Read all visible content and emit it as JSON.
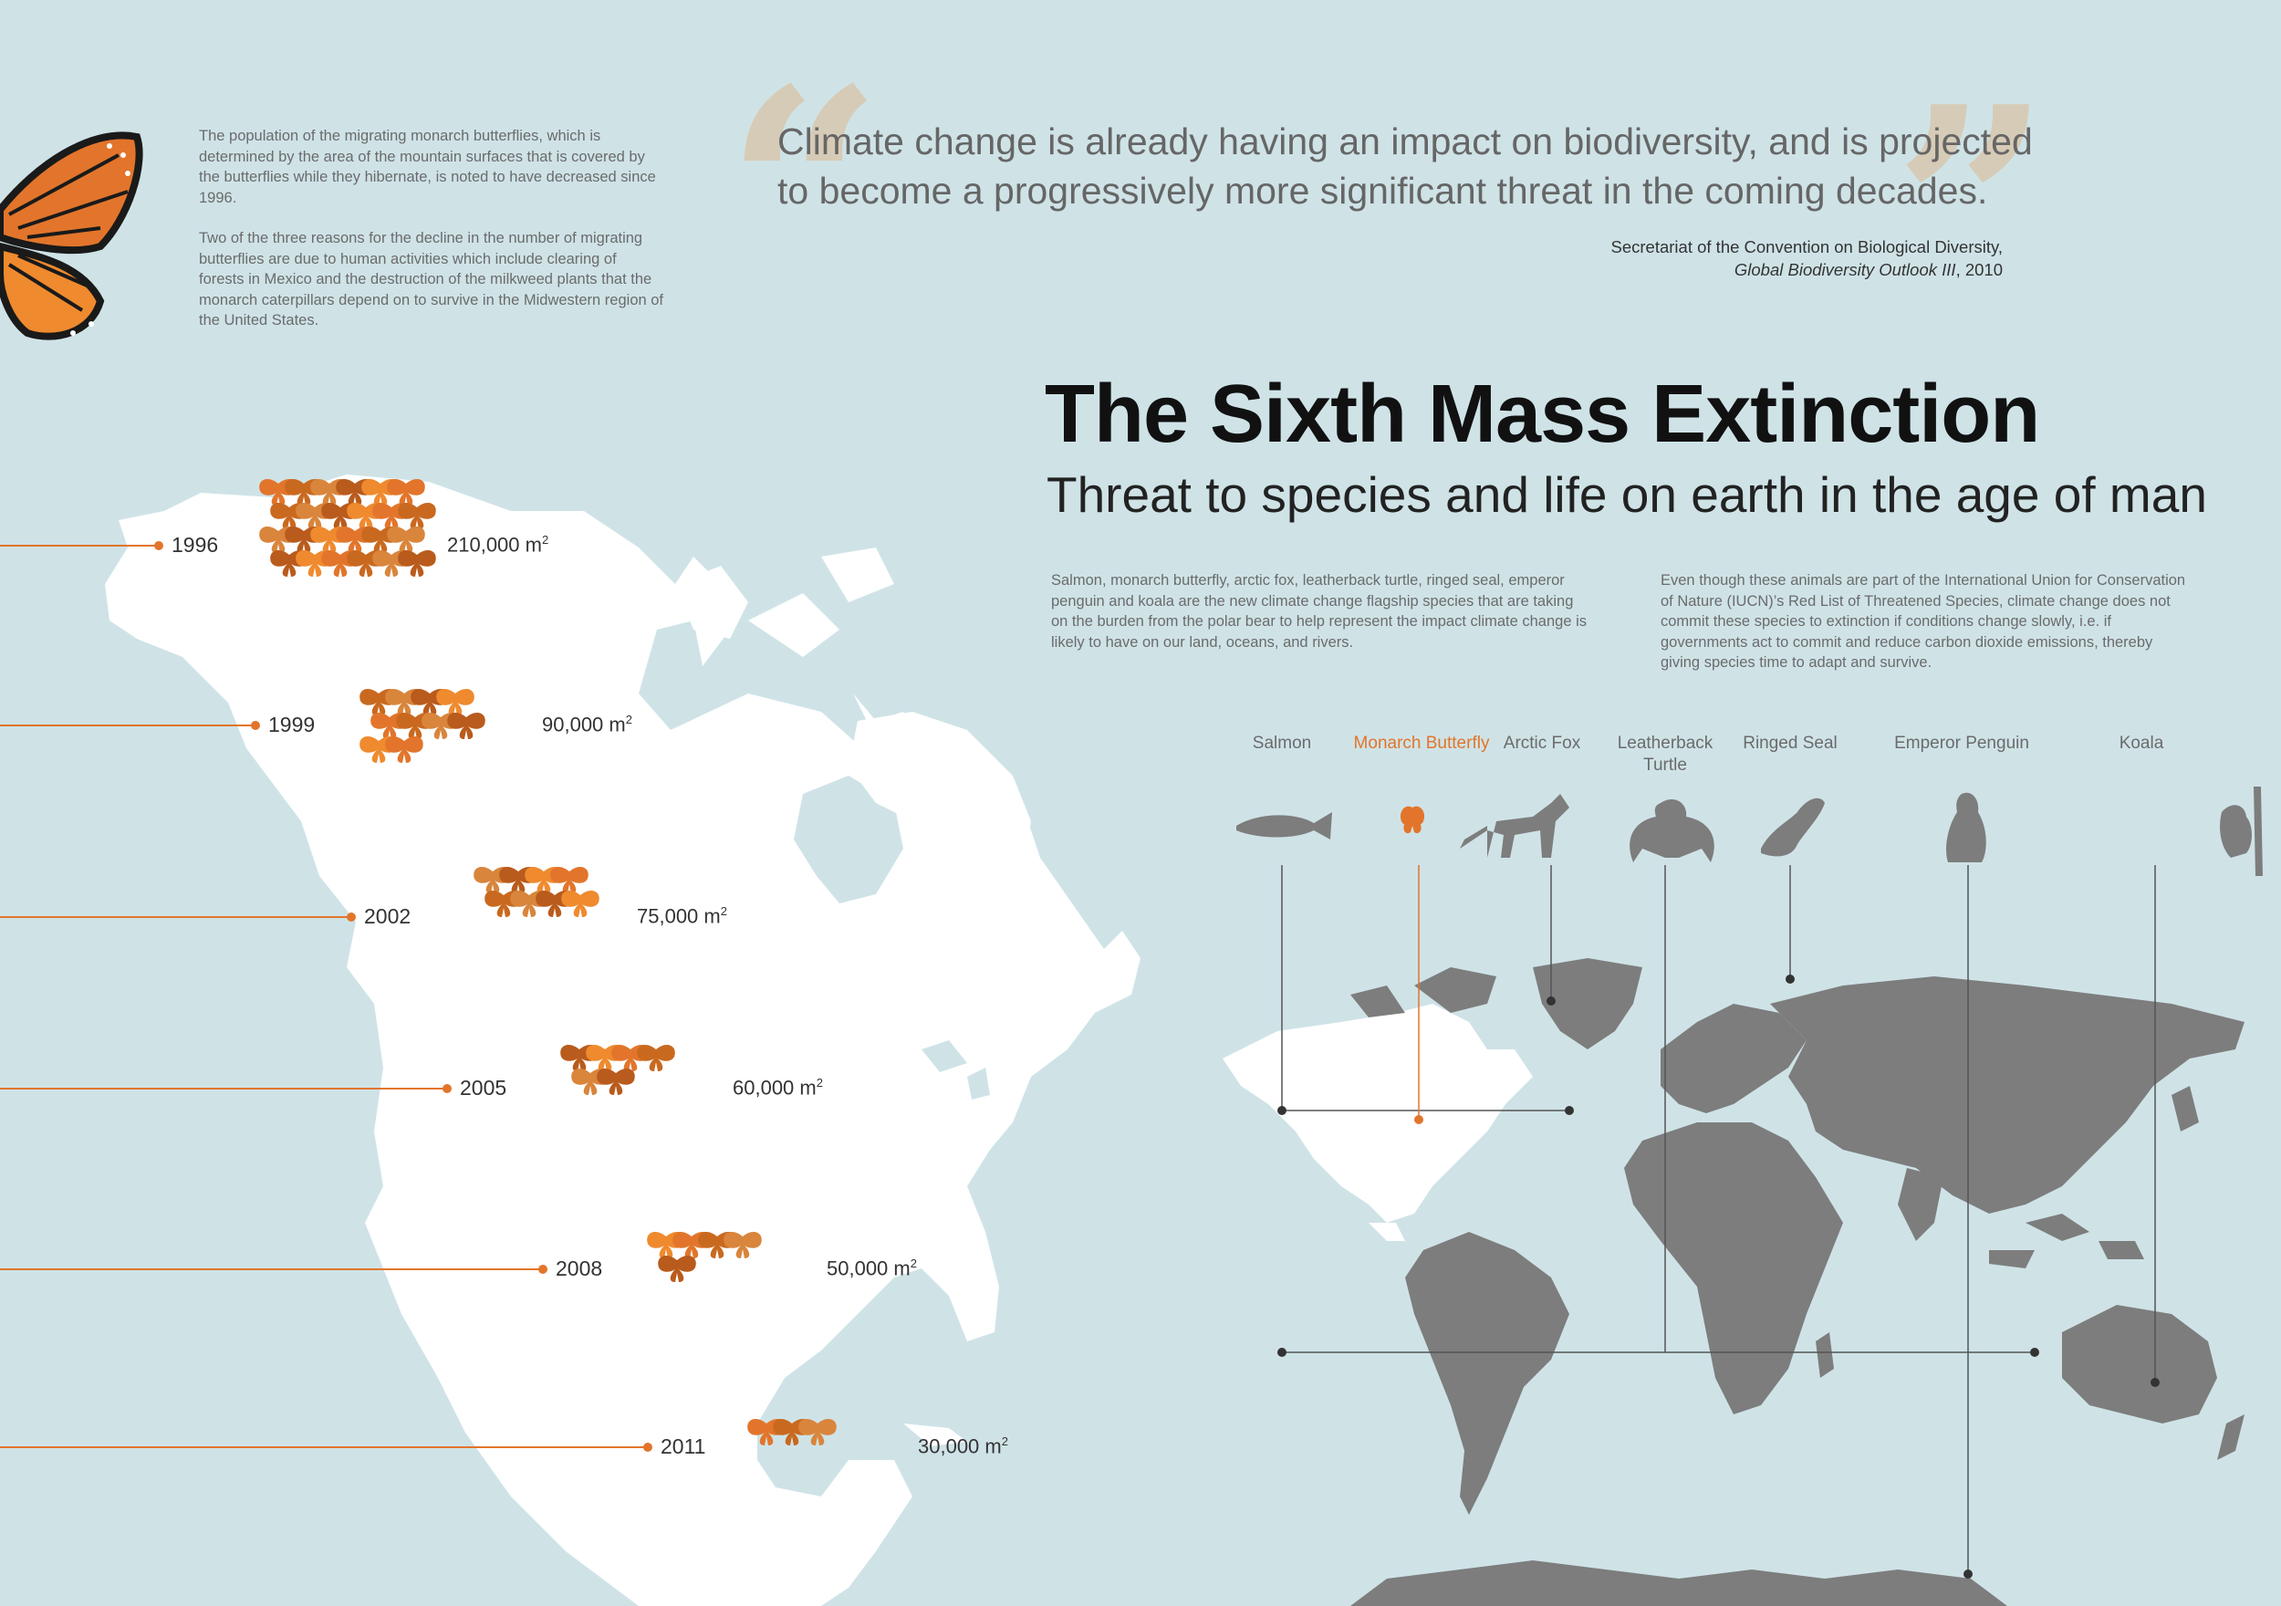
{
  "intro": {
    "p1": "The population of the migrating monarch butterflies, which is determined by the area of the mountain surfaces that is covered by the butterflies while they hibernate, is noted to have decreased since 1996.",
    "p2": "Two of the three reasons for the decline in the number of migrating butterflies are due to human activities which include clearing of forests in Mexico and the destruction of the milkweed plants that the monarch caterpillars depend on to survive in the Midwestern region of the United States."
  },
  "quote": {
    "open_mark": "“",
    "close_mark": "”",
    "text": "Climate change is already having an impact on biodiversity, and is projected to become a progressively more significant threat in the coming decades.",
    "attribution_line1": "Secretariat of the Convention on Biological Diversity,",
    "attribution_source": "Global Biodiversity Outlook III",
    "attribution_year": ", 2010"
  },
  "title": "The Sixth Mass Extinction",
  "subtitle": "Threat to species and life on earth in the age of man",
  "paragraphs": {
    "left": "Salmon, monarch butterfly, arctic fox, leatherback turtle, ringed seal, emperor penguin and koala are the new climate change flagship species that are taking on the burden from the polar bear to help represent  the impact climate change is likely to have on our land, oceans, and rivers.",
    "right": "Even though these animals are part of the International Union for Conservation of Nature (IUCN)’s Red List of Threatened Species, climate change does not commit these species to extinction if conditions change slowly, i.e. if governments act to commit and reduce carbon dioxide emissions, thereby giving species time to adapt and survive.",
    "tm": "™"
  },
  "species": [
    {
      "label": "Salmon",
      "icon": "salmon-icon"
    },
    {
      "label": "Monarch Butterfly",
      "icon": "butterfly-icon"
    },
    {
      "label": "Arctic Fox",
      "icon": "arctic-fox-icon"
    },
    {
      "label": "Leatherback Turtle",
      "icon": "turtle-icon"
    },
    {
      "label": "Ringed Seal",
      "icon": "seal-icon"
    },
    {
      "label": "Emperor Penguin",
      "icon": "penguin-icon"
    },
    {
      "label": "Koala",
      "icon": "koala-icon"
    }
  ],
  "timeline": [
    {
      "year": "1996",
      "area": "210,000 m",
      "butterflies": 24
    },
    {
      "year": "1999",
      "area": "90,000 m",
      "butterflies": 10
    },
    {
      "year": "2002",
      "area": "75,000 m",
      "butterflies": 8
    },
    {
      "year": "2005",
      "area": "60,000 m",
      "butterflies": 6
    },
    {
      "year": "2008",
      "area": "50,000 m",
      "butterflies": 5
    },
    {
      "year": "2011",
      "area": "30,000 m",
      "butterflies": 3
    }
  ],
  "area_unit_exponent": "2",
  "colors": {
    "background": "#cfe3e7",
    "land_north_america": "#ffffff",
    "land_world": "#7d7d7d",
    "accent_orange": "#e2752b",
    "quote_mark": "#d6cbb6",
    "butterfly_shades": [
      "#e2752b",
      "#c9691f",
      "#d9853c",
      "#b95b1c",
      "#ef8a2e"
    ]
  }
}
